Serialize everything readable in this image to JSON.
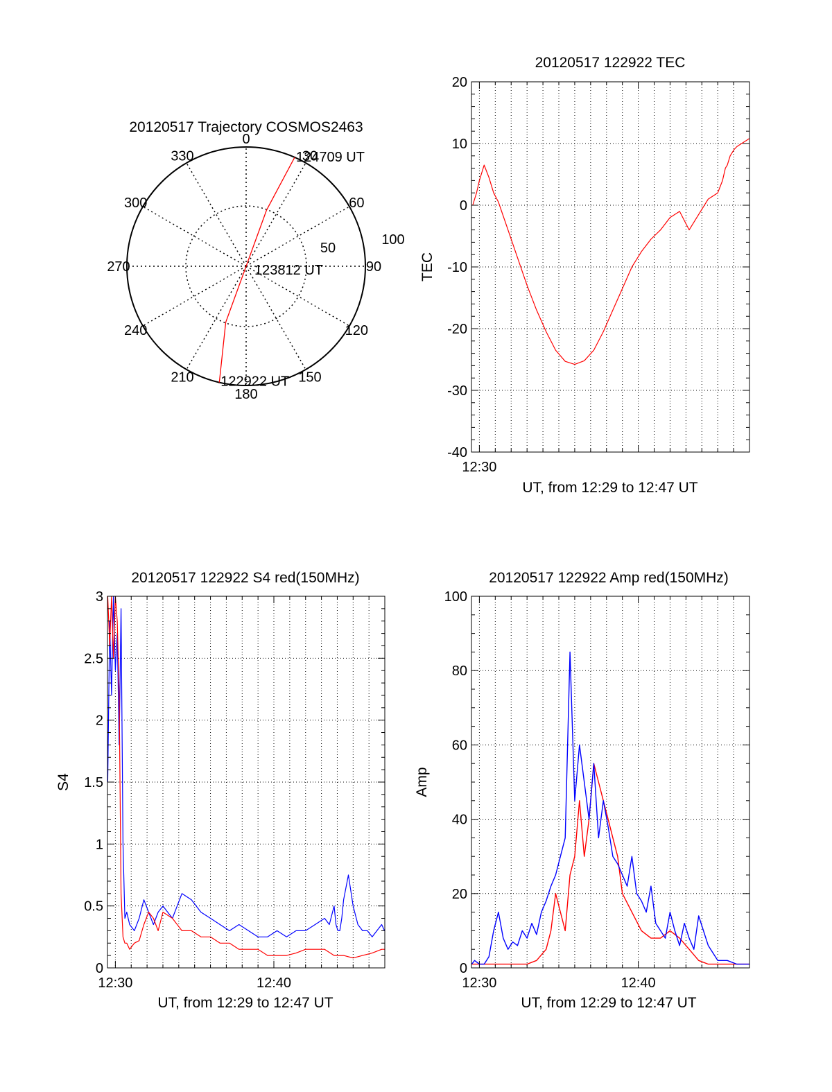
{
  "chart_data": [
    {
      "id": "trajectory",
      "type": "scatter",
      "title": "20120517 Trajectory COSMOS2463",
      "projection": "polar",
      "azimuth_labels": [
        "0",
        "30",
        "60",
        "90",
        "120",
        "150",
        "180",
        "210",
        "240",
        "270",
        "300",
        "330"
      ],
      "radial_labels": [
        "50",
        "100"
      ],
      "series": [
        {
          "color": "#ff0000",
          "points": [
            {
              "az": 193,
              "el": 0
            },
            {
              "az": 200,
              "el": 45
            },
            {
              "az": 180,
              "el": 90
            },
            {
              "az": 20,
              "el": 45
            },
            {
              "az": 24,
              "el": 0
            }
          ]
        }
      ],
      "annotations": [
        {
          "text": "124709 UT",
          "az": 24,
          "el": 0
        },
        {
          "text": "123812 UT",
          "az": 90,
          "el": 90
        },
        {
          "text": "122922 UT",
          "az": 193,
          "el": 0
        }
      ]
    },
    {
      "id": "tec",
      "type": "line",
      "title": "20120517 122922 TEC",
      "xlabel": "UT, from 12:29 to 12:47 UT",
      "ylabel": "TEC",
      "xlim": [
        12.4917,
        12.7833
      ],
      "ylim": [
        -40,
        20
      ],
      "yticks": [
        "20",
        "10",
        "0",
        "-10",
        "-20",
        "-30",
        "-40"
      ],
      "xticks": [
        "12:30"
      ],
      "grid": true,
      "series": [
        {
          "color": "#ff0000",
          "x": [
            12.493,
            12.497,
            12.5,
            12.503,
            12.505,
            12.51,
            12.515,
            12.52,
            12.53,
            12.54,
            12.55,
            12.56,
            12.57,
            12.58,
            12.59,
            12.6,
            12.61,
            12.62,
            12.63,
            12.64,
            12.65,
            12.66,
            12.67,
            12.68,
            12.69,
            12.7,
            12.71,
            12.72,
            12.73,
            12.74,
            12.75,
            12.755,
            12.758,
            12.76,
            12.763,
            12.767,
            12.77,
            12.775,
            12.78,
            12.783
          ],
          "y": [
            0.0,
            2.0,
            4.0,
            5.5,
            6.5,
            4.5,
            2.0,
            0.5,
            -4.0,
            -8.5,
            -13.0,
            -17.0,
            -20.5,
            -23.5,
            -25.3,
            -25.8,
            -25.2,
            -23.5,
            -20.5,
            -17.0,
            -13.5,
            -10.0,
            -7.5,
            -5.5,
            -4.0,
            -2.0,
            -1.0,
            -4.0,
            -1.5,
            1.0,
            2.0,
            4.0,
            6.0,
            6.5,
            8.0,
            9.0,
            9.5,
            10.0,
            10.5,
            10.8
          ]
        }
      ]
    },
    {
      "id": "s4",
      "type": "line",
      "title": "20120517 122922 S4 red(150MHz)",
      "xlabel": "UT, from 12:29 to 12:47 UT",
      "ylabel": "S4",
      "xlim": [
        12.4917,
        12.7833
      ],
      "ylim": [
        0,
        3
      ],
      "yticks": [
        "3",
        "2.5",
        "2",
        "1.5",
        "1",
        "0.5",
        "0"
      ],
      "xticks": [
        "12:30",
        "12:40"
      ],
      "grid": true,
      "series": [
        {
          "color": "#0000ff",
          "x": [
            12.492,
            12.494,
            12.496,
            12.498,
            12.5,
            12.502,
            12.504,
            12.506,
            12.508,
            12.51,
            12.512,
            12.515,
            12.52,
            12.525,
            12.53,
            12.535,
            12.54,
            12.545,
            12.55,
            12.56,
            12.57,
            12.58,
            12.59,
            12.6,
            12.61,
            12.62,
            12.63,
            12.64,
            12.65,
            12.66,
            12.67,
            12.68,
            12.69,
            12.7,
            12.71,
            12.72,
            12.725,
            12.73,
            12.732,
            12.734,
            12.736,
            12.738,
            12.74,
            12.745,
            12.75,
            12.755,
            12.76,
            12.765,
            12.77,
            12.775,
            12.78,
            12.783
          ],
          "y": [
            1.5,
            2.8,
            2.2,
            3.0,
            2.4,
            2.7,
            1.8,
            2.9,
            1.0,
            0.4,
            0.45,
            0.35,
            0.3,
            0.4,
            0.55,
            0.45,
            0.35,
            0.45,
            0.5,
            0.4,
            0.6,
            0.55,
            0.45,
            0.4,
            0.35,
            0.3,
            0.35,
            0.3,
            0.25,
            0.25,
            0.3,
            0.25,
            0.3,
            0.3,
            0.35,
            0.4,
            0.35,
            0.5,
            0.35,
            0.3,
            0.3,
            0.4,
            0.55,
            0.75,
            0.5,
            0.35,
            0.3,
            0.3,
            0.25,
            0.3,
            0.35,
            0.3
          ]
        },
        {
          "color": "#ff0000",
          "x": [
            12.492,
            12.494,
            12.496,
            12.498,
            12.5,
            12.502,
            12.504,
            12.506,
            12.508,
            12.51,
            12.512,
            12.515,
            12.52,
            12.525,
            12.53,
            12.535,
            12.54,
            12.545,
            12.55,
            12.56,
            12.57,
            12.58,
            12.59,
            12.6,
            12.61,
            12.62,
            12.63,
            12.64,
            12.65,
            12.66,
            12.67,
            12.68,
            12.69,
            12.7,
            12.71,
            12.72,
            12.73,
            12.74,
            12.75,
            12.76,
            12.77,
            12.78,
            12.783
          ],
          "y": [
            3.0,
            2.6,
            3.0,
            2.5,
            3.0,
            2.8,
            2.2,
            0.6,
            0.25,
            0.2,
            0.2,
            0.15,
            0.2,
            0.22,
            0.35,
            0.45,
            0.4,
            0.3,
            0.45,
            0.4,
            0.3,
            0.3,
            0.25,
            0.25,
            0.2,
            0.2,
            0.15,
            0.15,
            0.15,
            0.1,
            0.1,
            0.1,
            0.12,
            0.15,
            0.15,
            0.15,
            0.1,
            0.1,
            0.08,
            0.1,
            0.12,
            0.15,
            0.15
          ]
        }
      ]
    },
    {
      "id": "amp",
      "type": "line",
      "title": "20120517 122922 Amp red(150MHz)",
      "xlabel": "UT, from 12:29 to 12:47 UT",
      "ylabel": "Amp",
      "xlim": [
        12.4917,
        12.7833
      ],
      "ylim": [
        0,
        100
      ],
      "yticks": [
        "100",
        "80",
        "60",
        "40",
        "20",
        "0"
      ],
      "xticks": [
        "12:30",
        "12:40"
      ],
      "grid": true,
      "series": [
        {
          "color": "#ff0000",
          "x": [
            12.492,
            12.5,
            12.51,
            12.52,
            12.53,
            12.54,
            12.545,
            12.55,
            12.56,
            12.57,
            12.575,
            12.58,
            12.585,
            12.59,
            12.595,
            12.6,
            12.605,
            12.61,
            12.615,
            12.62,
            12.625,
            12.63,
            12.635,
            12.64,
            12.645,
            12.65,
            12.66,
            12.67,
            12.68,
            12.69,
            12.7,
            12.71,
            12.72,
            12.73,
            12.74,
            12.75,
            12.76,
            12.77,
            12.78,
            12.783
          ],
          "y": [
            1,
            1,
            1,
            1,
            1,
            1,
            1,
            1,
            2,
            5,
            10,
            20,
            15,
            10,
            25,
            30,
            45,
            30,
            40,
            55,
            50,
            45,
            40,
            35,
            30,
            20,
            15,
            10,
            8,
            8,
            10,
            8,
            5,
            2,
            1,
            1,
            1,
            1,
            1,
            1
          ]
        },
        {
          "color": "#0000ff",
          "x": [
            12.492,
            12.495,
            12.5,
            12.505,
            12.51,
            12.515,
            12.52,
            12.525,
            12.53,
            12.535,
            12.54,
            12.545,
            12.55,
            12.555,
            12.56,
            12.565,
            12.57,
            12.575,
            12.58,
            12.585,
            12.59,
            12.595,
            12.6,
            12.605,
            12.61,
            12.615,
            12.62,
            12.625,
            12.63,
            12.635,
            12.64,
            12.645,
            12.65,
            12.655,
            12.66,
            12.665,
            12.67,
            12.675,
            12.68,
            12.685,
            12.69,
            12.695,
            12.7,
            12.705,
            12.71,
            12.715,
            12.72,
            12.725,
            12.73,
            12.74,
            12.75,
            12.76,
            12.77,
            12.78,
            12.783
          ],
          "y": [
            1,
            2,
            1,
            1,
            3,
            10,
            15,
            8,
            5,
            7,
            6,
            10,
            8,
            12,
            9,
            15,
            18,
            22,
            25,
            30,
            35,
            85,
            45,
            60,
            50,
            40,
            55,
            35,
            45,
            38,
            30,
            28,
            25,
            22,
            30,
            20,
            18,
            15,
            22,
            12,
            10,
            8,
            15,
            10,
            6,
            12,
            8,
            5,
            14,
            6,
            2,
            2,
            1,
            1,
            1
          ]
        }
      ]
    }
  ]
}
